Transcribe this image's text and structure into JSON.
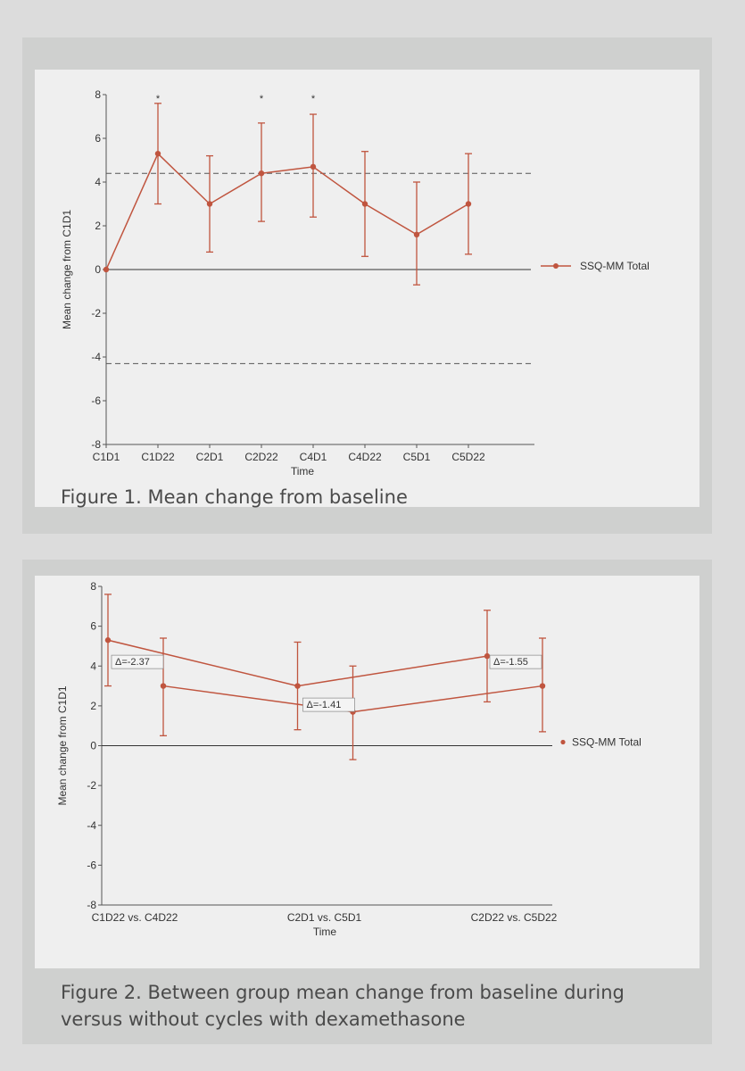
{
  "chart_data": [
    {
      "type": "line",
      "caption": "Figure 1. Mean change from baseline",
      "xlabel": "Time",
      "ylabel": "Mean change from C1D1",
      "ylim": [
        -8,
        8
      ],
      "yticks": [
        "-8",
        "-6",
        "-4",
        "-2",
        "0",
        "2",
        "4",
        "6",
        "8"
      ],
      "categories": [
        "C1D1",
        "C1D22",
        "C2D1",
        "C2D22",
        "C4D1",
        "C4D22",
        "C5D1",
        "C5D22"
      ],
      "series": [
        {
          "name": "SSQ-MM Total",
          "color": "#c0553f",
          "values": [
            0,
            5.3,
            3.0,
            4.4,
            4.7,
            3.0,
            1.6,
            3.0
          ],
          "lower": [
            0,
            3.0,
            0.8,
            2.2,
            2.4,
            0.6,
            -0.7,
            0.7
          ],
          "upper": [
            0,
            7.6,
            5.2,
            6.7,
            7.1,
            5.4,
            4.0,
            5.3
          ]
        }
      ],
      "significant": [
        "C1D22",
        "C2D22",
        "C4D1"
      ],
      "significance_marker": "*",
      "reference_lines": [
        4.4,
        -4.3
      ],
      "grid": false,
      "legend_position": "right"
    },
    {
      "type": "line",
      "caption": "Figure 2. Between group mean change from baseline during versus without cycles with dexamethasone",
      "xlabel": "Time",
      "ylabel": "Mean change from C1D1",
      "ylim": [
        -8,
        8
      ],
      "yticks": [
        "-8",
        "-6",
        "-4",
        "-2",
        "0",
        "2",
        "4",
        "6",
        "8"
      ],
      "categories": [
        "C1D22 vs. C4D22",
        "C2D1 vs. C5D1",
        "C2D22 vs. C5D22"
      ],
      "series": [
        {
          "name": "SSQ-MM Total",
          "color": "#c0553f",
          "values": [
            5.3,
            3.0,
            4.5
          ],
          "lower": [
            3.0,
            0.8,
            2.2
          ],
          "upper": [
            7.6,
            5.2,
            6.8
          ]
        },
        {
          "name": "",
          "color": "#c0553f",
          "values": [
            3.0,
            1.7,
            3.0
          ],
          "lower": [
            0.5,
            -0.7,
            0.7
          ],
          "upper": [
            5.4,
            4.0,
            5.4
          ]
        }
      ],
      "annotations": [
        "Δ=-2.37",
        "Δ=-1.41",
        "Δ=-1.55"
      ],
      "grid": false,
      "legend_position": "right"
    }
  ]
}
